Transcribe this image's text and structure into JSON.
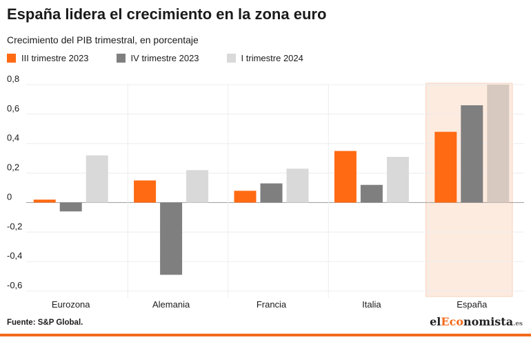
{
  "header": {
    "title": "España lidera el crecimiento en la zona euro",
    "subtitle": "Crecimiento del PIB trimestral, en porcentaje"
  },
  "footer": {
    "source": "Fuente: S&P Global.",
    "logo_main_1": "el",
    "logo_accent": "Eco",
    "logo_main_2": "nomista",
    "logo_domain": ".es"
  },
  "colors": {
    "orange": "#ff6a13",
    "dark_gray": "#7f7f7f",
    "light_gray": "#d9d9d9",
    "highlight_bg": "#fdebe0",
    "espana_light_bar": "#d7c9bf"
  },
  "chart_data": {
    "type": "bar",
    "categories": [
      "Eurozona",
      "Alemania",
      "Francia",
      "Italia",
      "España"
    ],
    "series": [
      {
        "name": "III trimestre 2023",
        "values": [
          0.02,
          0.15,
          0.08,
          0.35,
          0.48
        ]
      },
      {
        "name": "IV trimestre 2023",
        "values": [
          -0.06,
          -0.49,
          0.13,
          0.12,
          0.66
        ]
      },
      {
        "name": "I trimestre 2024",
        "values": [
          0.32,
          0.22,
          0.23,
          0.31,
          0.8
        ]
      }
    ],
    "y_ticks": [
      "0,8",
      "0,6",
      "0,4",
      "0,2",
      "0",
      "-0,2",
      "-0,4",
      "-0,6"
    ],
    "ylim": [
      -0.6,
      0.8
    ],
    "highlight_category": "España",
    "grid": true
  }
}
